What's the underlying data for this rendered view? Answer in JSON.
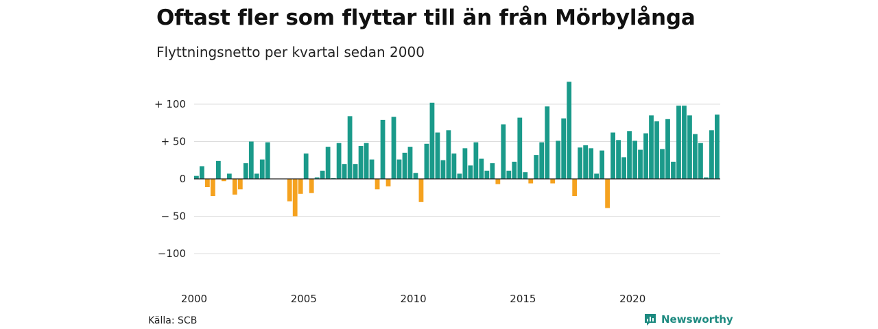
{
  "title": "Oftast fler som flyttar till än från Mörbylånga",
  "subtitle": "Flyttningsnetto per kvartal sedan 2000",
  "source": "Källa: SCB",
  "brand": "Newsworthy",
  "colors": {
    "positive": "#1a9a8a",
    "negative": "#f5a21f",
    "brand": "#1d8a80",
    "grid": "#dddddd",
    "zero": "#222222"
  },
  "chart_data": {
    "type": "bar",
    "ylim": [
      -100,
      130
    ],
    "yticks": [
      100,
      50,
      0,
      -50,
      -100
    ],
    "ytick_labels": [
      "+ 100",
      "+  50",
      "0",
      "− 50",
      "−100"
    ],
    "xticks": [
      2000,
      2005,
      2010,
      2015,
      2020
    ],
    "xtick_labels": [
      "2000",
      "2005",
      "2010",
      "2015",
      "2020"
    ],
    "start_year": 2000,
    "values": [
      4,
      17,
      -11,
      -23,
      24,
      -3,
      7,
      -21,
      -14,
      21,
      50,
      7,
      26,
      49,
      0,
      0,
      0,
      -30,
      -50,
      -20,
      34,
      -19,
      2,
      11,
      43,
      1,
      48,
      20,
      84,
      20,
      44,
      48,
      26,
      -14,
      79,
      -10,
      83,
      26,
      35,
      43,
      8,
      -31,
      47,
      102,
      62,
      25,
      65,
      34,
      7,
      41,
      18,
      49,
      27,
      11,
      21,
      -7,
      73,
      11,
      23,
      82,
      9,
      -6,
      32,
      49,
      97,
      -6,
      51,
      81,
      130,
      -23,
      42,
      45,
      41,
      7,
      38,
      -39,
      62,
      52,
      29,
      64,
      51,
      39,
      61,
      85,
      77,
      40,
      80,
      23,
      98,
      98,
      85,
      60,
      48,
      2,
      65,
      86
    ]
  }
}
